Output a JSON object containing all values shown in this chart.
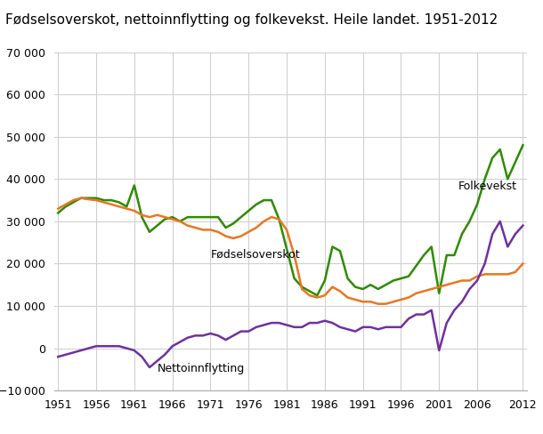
{
  "title": "Fødselsoverskot, nettoinnflytting og folkevekst. Heile landet. 1951-2012",
  "title_fontsize": 11,
  "ylim": [
    -10000,
    70000
  ],
  "xlim": [
    1951,
    2012
  ],
  "yticks": [
    -10000,
    0,
    10000,
    20000,
    30000,
    40000,
    50000,
    60000,
    70000
  ],
  "xticks": [
    1951,
    1956,
    1961,
    1966,
    1971,
    1976,
    1981,
    1986,
    1991,
    1996,
    2001,
    2006,
    2012
  ],
  "background_color": "#ffffff",
  "grid_color": "#d0d0d0",
  "line_fodsels_color": "#e87722",
  "line_netto_color": "#7030a0",
  "line_folke_color": "#2e8b00",
  "label_fodsels": "Fødselsoverskot",
  "label_netto": "Nettoinnflytting",
  "label_folke": "Folkevekst",
  "years": [
    1951,
    1952,
    1953,
    1954,
    1955,
    1956,
    1957,
    1958,
    1959,
    1960,
    1961,
    1962,
    1963,
    1964,
    1965,
    1966,
    1967,
    1968,
    1969,
    1970,
    1971,
    1972,
    1973,
    1974,
    1975,
    1976,
    1977,
    1978,
    1979,
    1980,
    1981,
    1982,
    1983,
    1984,
    1985,
    1986,
    1987,
    1988,
    1989,
    1990,
    1991,
    1992,
    1993,
    1994,
    1995,
    1996,
    1997,
    1998,
    1999,
    2000,
    2001,
    2002,
    2003,
    2004,
    2005,
    2006,
    2007,
    2008,
    2009,
    2010,
    2011,
    2012
  ],
  "fodselsoverskot": [
    33000,
    34000,
    35000,
    35500,
    35200,
    35000,
    34500,
    34000,
    33500,
    33000,
    32500,
    31500,
    31000,
    31500,
    31000,
    30500,
    30000,
    29000,
    28500,
    28000,
    28000,
    27500,
    26500,
    26000,
    26500,
    27500,
    28500,
    30000,
    31000,
    30500,
    28000,
    22000,
    14000,
    12500,
    12000,
    12500,
    14500,
    13500,
    12000,
    11500,
    11000,
    11000,
    10500,
    10500,
    11000,
    11500,
    12000,
    13000,
    13500,
    14000,
    14500,
    15000,
    15500,
    16000,
    16000,
    17000,
    17500,
    17500,
    17500,
    17500,
    18000,
    20000
  ],
  "nettoinnflytting": [
    -2000,
    -1500,
    -1000,
    -500,
    0,
    500,
    500,
    500,
    500,
    0,
    -500,
    -2000,
    -4500,
    -3000,
    -1500,
    500,
    1500,
    2500,
    3000,
    3000,
    3500,
    3000,
    2000,
    3000,
    4000,
    4000,
    5000,
    5500,
    6000,
    6000,
    5500,
    5000,
    5000,
    6000,
    6000,
    6500,
    6000,
    5000,
    4500,
    4000,
    5000,
    5000,
    4500,
    5000,
    5000,
    5000,
    7000,
    8000,
    8000,
    9000,
    -500,
    6000,
    9000,
    11000,
    14000,
    16000,
    20000,
    27000,
    30000,
    24000,
    27000,
    29000
  ],
  "folkevekst": [
    32000,
    33500,
    34500,
    35500,
    35500,
    35500,
    35000,
    35000,
    34500,
    33500,
    38500,
    31000,
    27500,
    29000,
    30500,
    31000,
    30000,
    31000,
    31000,
    31000,
    31000,
    31000,
    28500,
    29500,
    31000,
    32500,
    34000,
    35000,
    35000,
    30500,
    23500,
    16500,
    14500,
    13500,
    12500,
    16000,
    24000,
    23000,
    16500,
    14500,
    14000,
    15000,
    14000,
    15000,
    16000,
    16500,
    17000,
    19500,
    22000,
    24000,
    13000,
    22000,
    22000,
    27000,
    30000,
    34000,
    40000,
    45000,
    47000,
    40000,
    44000,
    48000
  ]
}
